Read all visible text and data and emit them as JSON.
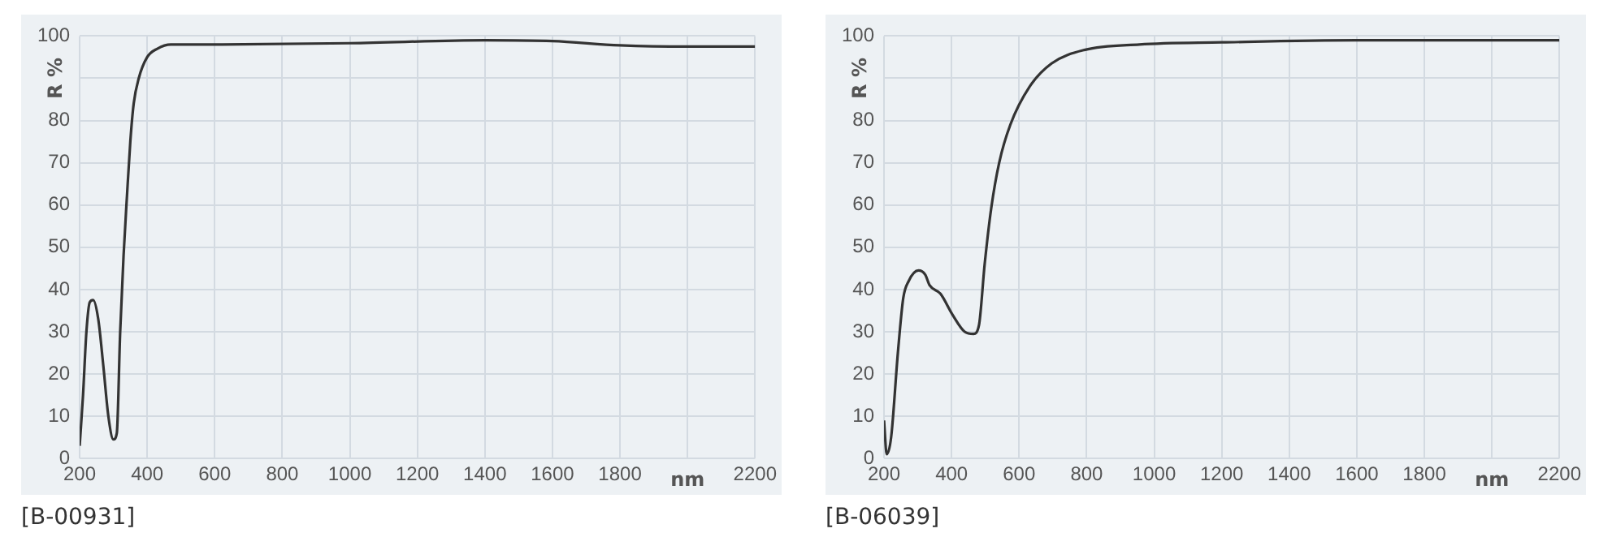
{
  "chart_data": [
    {
      "type": "line",
      "xlabel": "nm",
      "ylabel": "R %",
      "annotations": [
        "[B-00931]"
      ],
      "x": [
        200,
        210,
        220,
        230,
        240,
        255,
        270,
        285,
        300,
        310,
        320,
        330,
        340,
        350,
        360,
        375,
        400,
        430,
        470,
        600,
        1000,
        1400,
        1600,
        1800,
        2000,
        2200
      ],
      "series": [
        {
          "color": "#333333",
          "values": [
            3,
            15,
            30,
            37,
            37.5,
            33,
            22,
            10,
            4.5,
            6,
            30,
            48,
            62,
            75,
            84,
            90,
            95,
            97,
            98,
            98,
            98.3,
            99,
            98.8,
            97.8,
            97.5,
            97.5
          ]
        }
      ],
      "xlim": [
        200,
        2200
      ],
      "xticks": [
        200,
        400,
        600,
        800,
        1000,
        1200,
        1400,
        1600,
        1800,
        {
          "value": 2000,
          "label": null
        },
        2200
      ],
      "ylim": [
        0,
        100
      ],
      "yticks": [
        0,
        10,
        20,
        30,
        40,
        50,
        60,
        70,
        80,
        {
          "value": 90,
          "label": null
        },
        100
      ],
      "grid": true,
      "legend": false,
      "marker": "none",
      "line_style": "solid"
    },
    {
      "type": "line",
      "xlabel": "nm",
      "ylabel": "R %",
      "annotations": [
        "[B-06039]"
      ],
      "x": [
        200,
        208,
        221,
        241,
        257,
        273,
        302,
        322,
        335,
        367,
        403,
        439,
        465,
        481,
        498,
        517,
        541,
        574,
        631,
        696,
        793,
        956,
        1200,
        1600,
        2000,
        2200
      ],
      "series": [
        {
          "color": "#333333",
          "values": [
            9,
            1,
            5,
            25,
            38,
            42,
            44.5,
            43.5,
            41,
            39,
            34,
            30,
            29.5,
            31.5,
            46,
            59,
            70,
            79,
            88,
            93.5,
            96.7,
            98,
            98.5,
            99,
            99,
            99
          ]
        }
      ],
      "xlim": [
        200,
        2200
      ],
      "xticks": [
        200,
        400,
        600,
        800,
        1000,
        1200,
        1400,
        1600,
        1800,
        {
          "value": 2000,
          "label": null
        },
        2200
      ],
      "ylim": [
        0,
        100
      ],
      "yticks": [
        0,
        10,
        20,
        30,
        40,
        50,
        60,
        70,
        80,
        {
          "value": 90,
          "label": null
        },
        100
      ],
      "grid": true,
      "legend": false,
      "marker": "none",
      "line_style": "solid"
    }
  ]
}
